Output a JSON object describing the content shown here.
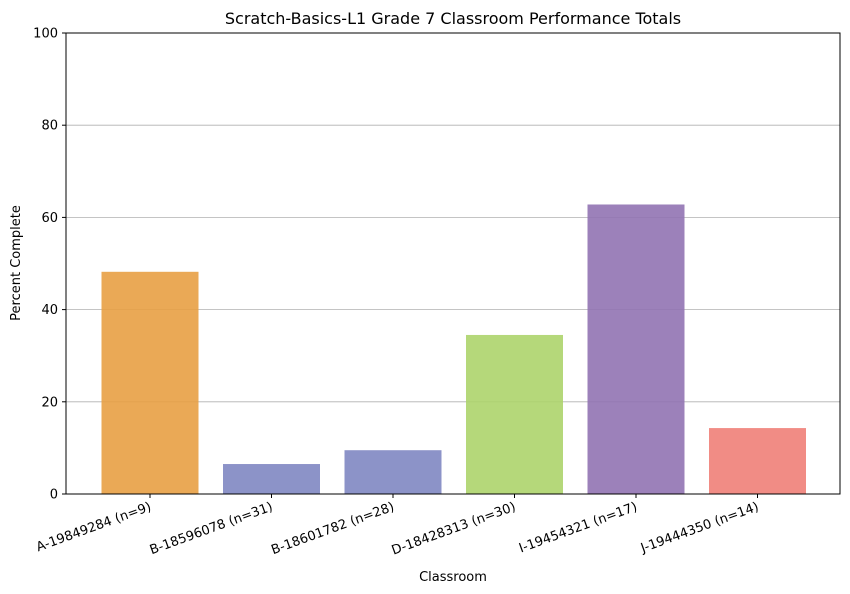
{
  "chart_data": {
    "type": "bar",
    "title": "Scratch-Basics-L1 Grade 7 Classroom Performance Totals",
    "xlabel": "Classroom",
    "ylabel": "Percent Complete",
    "ylim": [
      0,
      100
    ],
    "yticks": [
      "0",
      "20",
      "40",
      "60",
      "80",
      "100"
    ],
    "grid": "horizontal",
    "categories": [
      "A-19849284 (n=9)",
      "B-18596078 (n=31)",
      "B-18601782 (n=28)",
      "D-18428313 (n=30)",
      "I-19454321 (n=17)",
      "J-19444350 (n=14)"
    ],
    "values": [
      48.2,
      6.5,
      9.5,
      34.5,
      62.8,
      14.3
    ],
    "colors": [
      "#E8A044",
      "#7F87C2",
      "#7F87C2",
      "#ADD46B",
      "#9173B3",
      "#F08078"
    ]
  }
}
